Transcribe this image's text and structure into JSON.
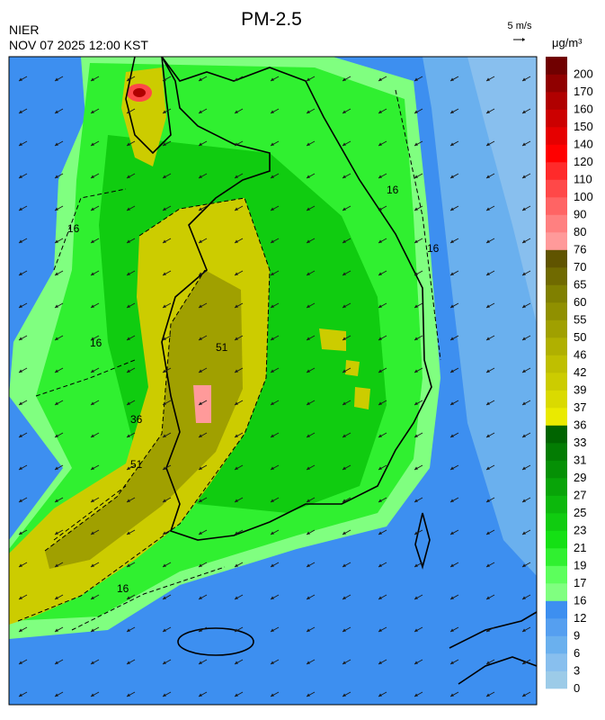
{
  "header": {
    "title": "PM-2.5",
    "agency": "NIER",
    "datetime": "NOV 07 2025 12:00 KST",
    "wind_scale": "5 m/s",
    "unit": "μg/m³"
  },
  "colorbar": {
    "levels": [
      0,
      3,
      6,
      9,
      12,
      16,
      17,
      19,
      21,
      23,
      25,
      27,
      29,
      31,
      33,
      36,
      37,
      39,
      42,
      46,
      50,
      55,
      60,
      65,
      70,
      76,
      80,
      90,
      100,
      110,
      120,
      140,
      150,
      160,
      170,
      200
    ],
    "colors": [
      "#9ccbe8",
      "#88bfee",
      "#6ab0ee",
      "#559ff0",
      "#3d8ff0",
      "#80ff80",
      "#5cff5c",
      "#30f030",
      "#14e014",
      "#10cc10",
      "#0cb80c",
      "#08a408",
      "#059005",
      "#037c03",
      "#006400",
      "#eaea00",
      "#dada00",
      "#cccc00",
      "#bfbf00",
      "#b0b000",
      "#a0a000",
      "#909000",
      "#808000",
      "#706a00",
      "#605400",
      "#ff9a9a",
      "#ff8080",
      "#ff6464",
      "#ff4848",
      "#ff2a2a",
      "#ff0000",
      "#e60000",
      "#cc0000",
      "#b00000",
      "#900000",
      "#700000"
    ]
  },
  "contour_labels": [
    "16",
    "16",
    "16",
    "16",
    "16",
    "36",
    "51",
    "51"
  ]
}
